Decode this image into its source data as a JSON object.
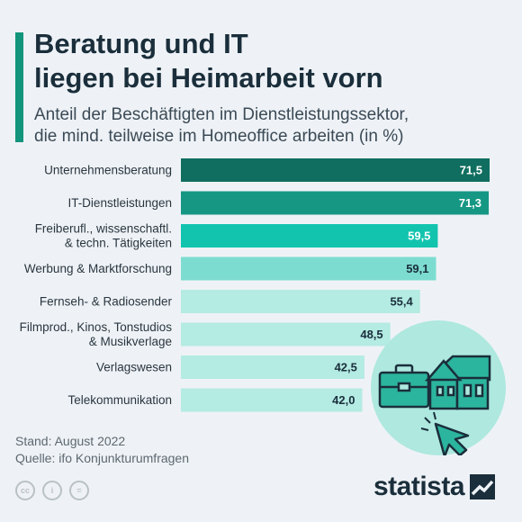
{
  "header": {
    "title_line1": "Beratung und IT",
    "title_line2": "liegen bei Heimarbeit vorn",
    "subtitle_line1": "Anteil der Beschäftigten im Dienstleistungssektor,",
    "subtitle_line2": "die mind. teilweise im Homeoffice arbeiten (in %)"
  },
  "colors": {
    "accent": "#12957c",
    "title": "#1a2e3b",
    "bar_1": "#0f6e5f",
    "bar_2": "#159784",
    "bar_3": "#12c4ae",
    "bar_4": "#7ddcd0",
    "bar_5": "#b4ebe3",
    "illustration_circle": "#aee8df"
  },
  "chart_data": {
    "type": "bar",
    "orientation": "horizontal",
    "categories": [
      [
        "Unternehmensberatung"
      ],
      [
        "IT-Dienstleistungen"
      ],
      [
        "Freiberufl., wissenschaftl.",
        "& techn. Tätigkeiten"
      ],
      [
        "Werbung & Marktforschung"
      ],
      [
        "Fernseh- & Radiosender"
      ],
      [
        "Filmprod., Kinos, Tonstudios",
        "& Musikverlage"
      ],
      [
        "Verlagswesen"
      ],
      [
        "Telekommunikation"
      ]
    ],
    "values": [
      71.5,
      71.3,
      59.5,
      59.1,
      55.4,
      48.5,
      42.5,
      42.0
    ],
    "value_labels": [
      "71,5",
      "71,3",
      "59,5",
      "59,1",
      "55,4",
      "48,5",
      "42,5",
      "42,0"
    ],
    "bar_colors": [
      "#0f6e5f",
      "#159784",
      "#12c4ae",
      "#7ddcd0",
      "#b4ebe3",
      "#b4ebe3",
      "#b4ebe3",
      "#b4ebe3"
    ],
    "value_label_colors": [
      "#ffffff",
      "#ffffff",
      "#ffffff",
      "#1a2e3b",
      "#1a2e3b",
      "#1a2e3b",
      "#1a2e3b",
      "#1a2e3b"
    ],
    "xlim": [
      0,
      71.5
    ],
    "grid": false,
    "legend": "none"
  },
  "footer": {
    "stand": "Stand: August 2022",
    "quelle": "Quelle: ifo Konjunkturumfragen",
    "license_icons": [
      "cc-icon",
      "by-icon",
      "nd-icon"
    ],
    "license_glyphs": [
      "cc",
      "i",
      "="
    ],
    "brand": "statista"
  }
}
